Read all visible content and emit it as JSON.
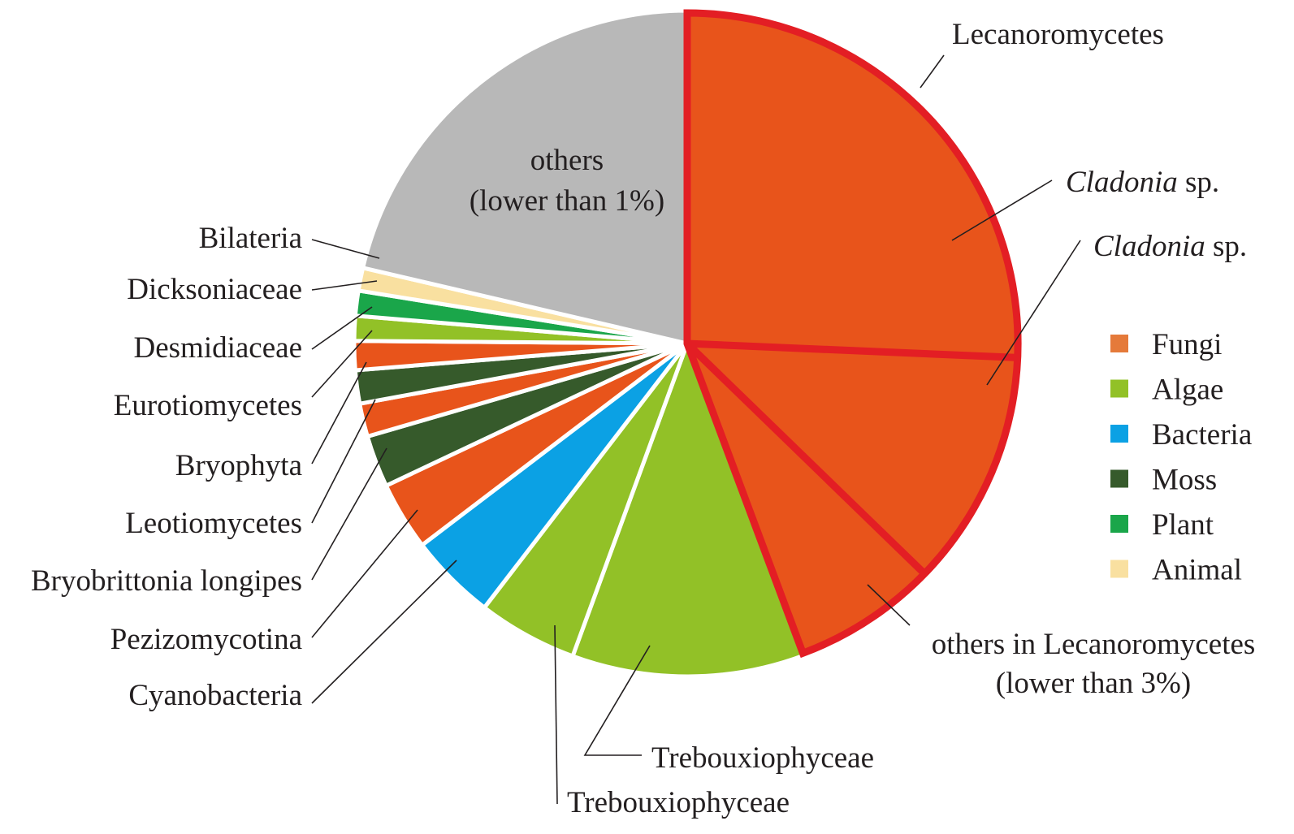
{
  "chart_data": {
    "type": "pie",
    "title": "",
    "slices": [
      {
        "label": "Cladonia sp.",
        "label_italic": "Cladonia",
        "label_suffix": " sp.",
        "value": 25.5,
        "group": "Fungi",
        "color": "#e8541b"
      },
      {
        "label": "Cladonia sp.",
        "label_italic": "Cladonia",
        "label_suffix": " sp.",
        "value": 11.5,
        "group": "Fungi",
        "color": "#e8541b"
      },
      {
        "label": "others in Lecanoromycetes (lower than 3%)",
        "label_lines": [
          "others in Lecanoromycetes",
          "(lower than 3%)"
        ],
        "value": 7.0,
        "group": "Fungi",
        "color": "#e8541b"
      },
      {
        "label": "Trebouxiophyceae",
        "value": 11.2,
        "group": "Algae",
        "color": "#92c127"
      },
      {
        "label": "Trebouxiophyceae",
        "value": 4.8,
        "group": "Algae",
        "color": "#92c127"
      },
      {
        "label": "Cyanobacteria",
        "value": 4.2,
        "group": "Bacteria",
        "color": "#0ba1e4"
      },
      {
        "label": "Pezizomycotina",
        "value": 3.3,
        "group": "Fungi",
        "color": "#e8541b"
      },
      {
        "label": "Bryobrittonia longipes",
        "value": 2.5,
        "group": "Moss",
        "color": "#365a2b"
      },
      {
        "label": "Leotiomycetes",
        "value": 1.6,
        "group": "Fungi",
        "color": "#e8541b"
      },
      {
        "label": "Bryophyta",
        "value": 1.6,
        "group": "Moss",
        "color": "#365a2b"
      },
      {
        "label": "Eurotiomycetes",
        "value": 1.4,
        "group": "Fungi",
        "color": "#e8541b"
      },
      {
        "label": "Desmidiaceae",
        "value": 1.2,
        "group": "Algae",
        "color": "#92c127"
      },
      {
        "label": "Dicksoniaceae",
        "value": 1.2,
        "group": "Plant",
        "color": "#1aa64a"
      },
      {
        "label": "Bilateria",
        "value": 1.1,
        "group": "Animal",
        "color": "#f9e0a0"
      },
      {
        "label": "others (lower than 1%)",
        "label_lines": [
          "others",
          "(lower than 1%)"
        ],
        "value": 21.2,
        "group": "others",
        "color": "#b8b8b8"
      }
    ],
    "highlight": {
      "label": "Lecanoromycetes",
      "slices": [
        0,
        1,
        2
      ],
      "color": "#e31e24"
    },
    "legend": {
      "position": "right",
      "items": [
        {
          "label": "Fungi",
          "color": "#e57a3a"
        },
        {
          "label": "Algae",
          "color": "#92c127"
        },
        {
          "label": "Bacteria",
          "color": "#0ba1e4"
        },
        {
          "label": "Moss",
          "color": "#365a2b"
        },
        {
          "label": "Plant",
          "color": "#1aa64a"
        },
        {
          "label": "Animal",
          "color": "#f9e0a0"
        }
      ]
    }
  }
}
